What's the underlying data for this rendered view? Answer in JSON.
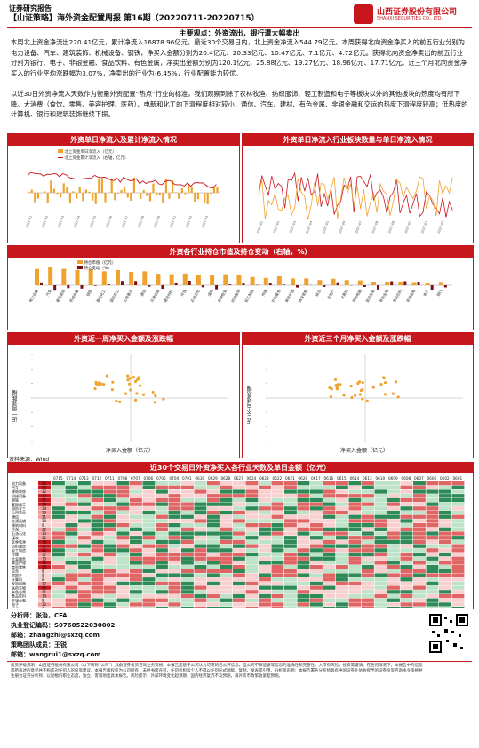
{
  "header": {
    "top_label": "证券研究报告",
    "title": "【山证策略】海外资金配置周报 第16期（20220711-20220715）",
    "company_cn": "山西证券股份有限公司",
    "company_en": "SHANXI SECURITIES CO., LTD."
  },
  "main_point": "主要观点：外资流出，银行遭大幅卖出",
  "paragraphs": [
    "本周北上资金净流出220.41亿元，累计净流入16878.96亿元。最近30个交易日内，北上资金净流入544.79亿元。本周获得北向资金净买入的前五行业分别为电力设备、汽车、建筑装饰、机械设备、钢铁，净买入金额分别为20.4亿元、20.33亿元、10.47亿元、7.1亿元、4.72亿元。获得北向资金净卖出的前五行业分别为银行、电子、非银金融、食品饮料、有色金属，净卖出金额分别为120.1亿元、25.88亿元、19.27亿元、18.96亿元、17.71亿元。近三个月北向资金净买入的行业平均涨跌幅为3.07%，净卖出的行业为-6.45%，行业配置能力较优。",
    "以近30日外资净流入天数作为衡量外资配置“热点”行业的标准，我们观察到除了农林牧渔、纺织服饰、轻工制造和电子等板块以外的其他板块的热度均有所下降。大消费（食饮、零售、美容护理、医药）、电新和化工的下滑程度相对较小，通信、汽车、建材、有色金属、非银金融和交运的热度下滑程度较高；低热度的计算机、银行和建筑装饰继续下探。"
  ],
  "panels": {
    "p1_title": "外资单日净流入及累计净流入情况",
    "p1_legend": [
      "北上资金单日净流入（亿元）",
      "北上资金累计净流入（右轴，亿元）"
    ],
    "p2_title": "外资单日净流入行业板块数量与单日净流入情况",
    "p3_title": "外资各行业持仓市值及持仓变动（右轴，%）",
    "p3_legend": [
      "持仓市值（亿元）",
      "持仓变动（%）"
    ],
    "p4_title": "外资近一周净买入金额及涨跌幅",
    "p4_ylabel": "近一周涨跌幅",
    "p4_xlabel": "净买入金额（亿元）",
    "p5_title": "外资近三个月净买入金额及涨跌幅",
    "p5_ylabel": "近三个月涨跌幅",
    "p5_xlabel": "净买入金额（亿元）",
    "source": "资料来源：Wind"
  },
  "table": {
    "title": "近30个交易日外资净买入各行业天数及单日金额（亿元）",
    "dates": [
      "0715",
      "0714",
      "0713",
      "0712",
      "0711",
      "0708",
      "0707",
      "0706",
      "0705",
      "0704",
      "0701",
      "0630",
      "0629",
      "0628",
      "0627",
      "0624",
      "0623",
      "0622",
      "0621",
      "0620",
      "0617",
      "0616",
      "0615",
      "0614",
      "0613",
      "0610",
      "0609",
      "0608",
      "0607",
      "0606",
      "0602",
      "0601"
    ],
    "industries": [
      "电力设备",
      "汽车",
      "建筑装饰",
      "机械设备",
      "钢铁",
      "基础化工",
      "国防军工",
      "公用事业",
      "通信",
      "交通运输",
      "建筑材料",
      "环保",
      "石油石化",
      "煤炭",
      "农林牧渔",
      "纺织服饰",
      "轻工制造",
      "传媒",
      "社会服务",
      "美容护理",
      "商贸零售",
      "综合",
      "房地产",
      "计算机",
      "家用电器",
      "医药生物",
      "有色金属",
      "食品饮料",
      "非银金融",
      "电子",
      "银行"
    ],
    "days": [
      22,
      20,
      12,
      17,
      15,
      19,
      14,
      13,
      11,
      10,
      9,
      12,
      13,
      11,
      18,
      17,
      19,
      12,
      13,
      16,
      15,
      8,
      9,
      8,
      12,
      16,
      11,
      14,
      8,
      12,
      7
    ]
  },
  "footer": {
    "analyst": "分析师：张治，CFA",
    "cert": "执业登记编码：S0760522030002",
    "email1": "邮箱：zhangzhi@sxzq.com",
    "assistant": "策略团队成员：王锐",
    "email2": "邮箱：wangrui1@sxzq.com",
    "disclaimer": "投资评级说明：山西证券股份有限公司（以下简称“公司”）具备证券投资咨询业务资格。本报告是基于公司认为可靠的已公开信息，但公司不保证该等信息的准确性和完整性。入市有风险，投资需谨慎。在任何情况下，本报告中的信息或所表述的意见并不构成对任何人的投资建议。本报告版权仅为公司所有，未经书面许可，任何机构和个人不得以任何形式翻版、复制、发表或引用。分析师声明：本报告署名分析师具有中国证券业协会授予的证券投资咨询执业资格并注册为证券分析师，以勤勉的职业态度，独立、客观地出具本报告。风险提示：外部环境变化超预期，国内经济复苏不及预期，海外货币政策收紧超预期。"
  },
  "colors": {
    "brand": "#c8161d",
    "orange": "#f0a22e",
    "dark": "#7a0f12"
  }
}
